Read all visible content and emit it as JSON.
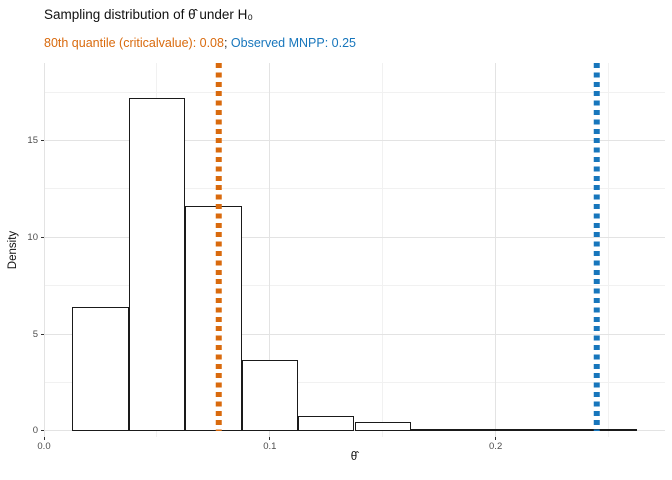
{
  "title": "Sampling distribution of θ̂ under H₀",
  "subtitle": {
    "critical_part": "80th quantile (criticalvalue): 0.08",
    "separator": "; ",
    "observed_part": "Observed MNPP: 0.25"
  },
  "colors": {
    "critical_line": "#D96A0D",
    "observed_line": "#1776BC",
    "bar_fill": "#FFFFFF",
    "bar_border": "#1A1A1A",
    "grid_major": "#E3E3E3",
    "grid_minor": "#F1F1F1",
    "tick_label": "#4D4D4D",
    "title_text": "#111111"
  },
  "chart_data": {
    "type": "bar",
    "subtype": "histogram",
    "title": "Sampling distribution of θ̂ under H₀",
    "subtitle": "80th quantile (criticalvalue): 0.08; Observed MNPP: 0.25",
    "xlabel": "θ̂",
    "ylabel": "Density",
    "xlim": [
      0,
      0.275
    ],
    "ylim": [
      -0.31,
      19.0
    ],
    "grid": true,
    "legend": "none",
    "bin_width": 0.025,
    "bins": [
      {
        "x0": 0.0125,
        "x1": 0.0375,
        "density": 6.4
      },
      {
        "x0": 0.0375,
        "x1": 0.0625,
        "density": 17.2
      },
      {
        "x0": 0.0625,
        "x1": 0.0875,
        "density": 11.6
      },
      {
        "x0": 0.0875,
        "x1": 0.1125,
        "density": 3.64
      },
      {
        "x0": 0.1125,
        "x1": 0.1375,
        "density": 0.8
      },
      {
        "x0": 0.1375,
        "x1": 0.1625,
        "density": 0.44
      },
      {
        "x0": 0.1625,
        "x1": 0.1875,
        "density": 0
      },
      {
        "x0": 0.1875,
        "x1": 0.2125,
        "density": 0
      },
      {
        "x0": 0.2125,
        "x1": 0.2375,
        "density": 0
      },
      {
        "x0": 0.2375,
        "x1": 0.2625,
        "density": 0.04
      }
    ],
    "x_ticks": {
      "major": [
        0,
        0.1,
        0.2
      ],
      "major_labels": [
        "0.0",
        "0.1",
        "0.2"
      ],
      "minor": [
        0.05,
        0.15,
        0.25
      ]
    },
    "y_ticks": {
      "major": [
        0,
        5,
        10,
        15
      ],
      "major_labels": [
        "0",
        "5",
        "10",
        "15"
      ],
      "minor": [
        2.5,
        7.5,
        12.5,
        17.5
      ]
    },
    "vlines": [
      {
        "name": "critical-value-line",
        "x": 0.0773,
        "labeled_value": "0.08",
        "color": "#D96A0D",
        "style": "dashed"
      },
      {
        "name": "observed-mnpp-line",
        "x": 0.2447,
        "labeled_value": "0.25",
        "color": "#1776BC",
        "style": "dashed"
      }
    ]
  }
}
